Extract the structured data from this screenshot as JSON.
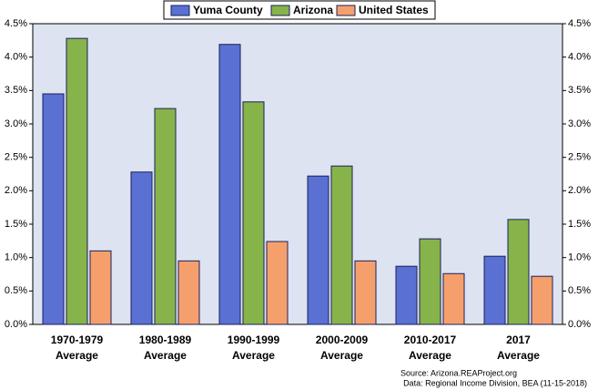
{
  "chart_data": {
    "type": "bar",
    "categories": [
      [
        "1970-1979",
        "Average"
      ],
      [
        "1980-1989",
        "Average"
      ],
      [
        "1990-1999",
        "Average"
      ],
      [
        "2000-2009",
        "Average"
      ],
      [
        "2010-2017",
        "Average"
      ],
      [
        "2017",
        "Average"
      ]
    ],
    "series": [
      {
        "name": "Yuma County",
        "color": "#5a70d2",
        "values": [
          3.45,
          2.28,
          4.19,
          2.22,
          0.87,
          1.02
        ]
      },
      {
        "name": "Arizona",
        "color": "#86b44a",
        "values": [
          4.28,
          3.23,
          3.33,
          2.37,
          1.28,
          1.57
        ]
      },
      {
        "name": "United States",
        "color": "#f5a06c",
        "values": [
          1.1,
          0.95,
          1.24,
          0.95,
          0.76,
          0.72
        ]
      }
    ],
    "ylim": [
      0,
      4.5
    ],
    "yticks": [
      {
        "value": 0,
        "label": "0.0%"
      },
      {
        "value": 0.5,
        "label": "0.5%"
      },
      {
        "value": 1,
        "label": "1.0%"
      },
      {
        "value": 1.5,
        "label": "1.5%"
      },
      {
        "value": 2,
        "label": "2.0%"
      },
      {
        "value": 2.5,
        "label": "2.5%"
      },
      {
        "value": 3,
        "label": "3.0%"
      },
      {
        "value": 3.5,
        "label": "3.5%"
      },
      {
        "value": 4,
        "label": "4.0%"
      },
      {
        "value": 4.5,
        "label": "4.5%"
      }
    ],
    "y2lim": [
      0,
      4.5
    ],
    "y2ticks": [
      {
        "value": 0,
        "label": "0.0%"
      },
      {
        "value": 0.5,
        "label": "0.5%"
      },
      {
        "value": 1,
        "label": "1.0%"
      },
      {
        "value": 1.5,
        "label": "1.5%"
      },
      {
        "value": 2,
        "label": "2.0%"
      },
      {
        "value": 2.5,
        "label": "2.5%"
      },
      {
        "value": 3,
        "label": "3.0%"
      },
      {
        "value": 3.5,
        "label": "3.5%"
      },
      {
        "value": 4,
        "label": "4.0%"
      },
      {
        "value": 4.5,
        "label": "4.5%"
      }
    ],
    "source": [
      "Source: Arizona.REAProject.org",
      "Data: Regional Income Division, BEA (11-15-2018)"
    ],
    "legend": "top"
  }
}
